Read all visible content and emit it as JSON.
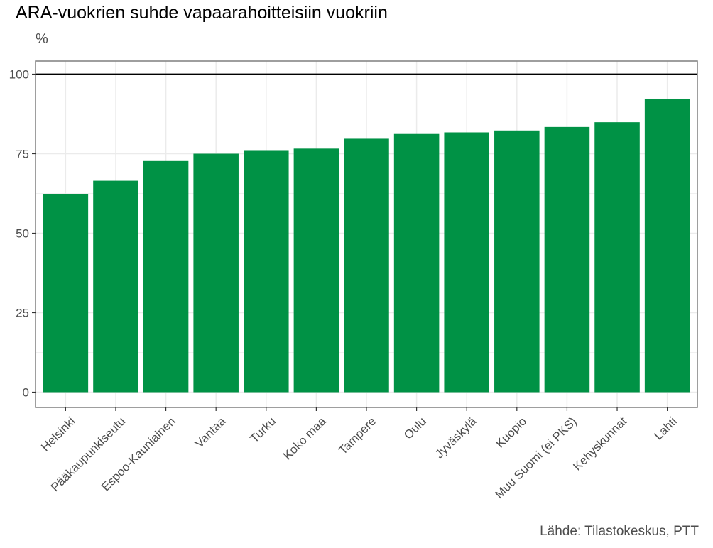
{
  "chart_data": {
    "type": "bar",
    "title": "ARA-vuokrien suhde vapaarahoitteisiin vuokriin",
    "subtitle": "%",
    "caption": "Lähde: Tilastokeskus, PTT",
    "xlabel": "",
    "ylabel": "",
    "categories": [
      "Helsinki",
      "Pääkaupunkiseutu",
      "Espoo-Kauniainen",
      "Vantaa",
      "Turku",
      "Koko maa",
      "Tampere",
      "Oulu",
      "Jyväskylä",
      "Kuopio",
      "Muu Suomi (ei PKS)",
      "Kehyskunnat",
      "Lahti"
    ],
    "values": [
      62.3,
      66.5,
      72.7,
      75.0,
      75.9,
      76.6,
      79.7,
      81.2,
      81.7,
      82.3,
      83.4,
      84.9,
      92.3
    ],
    "ylim": [
      0,
      100
    ],
    "yticks": [
      0,
      25,
      50,
      75,
      100
    ],
    "ytick_labels": [
      "0",
      "25",
      "50",
      "75",
      "100"
    ],
    "reference_line": 100,
    "grid": true,
    "legend": "none",
    "bar_color": "#009245",
    "reference_line_color": "#000000",
    "grid_color": "#ebebeb"
  }
}
